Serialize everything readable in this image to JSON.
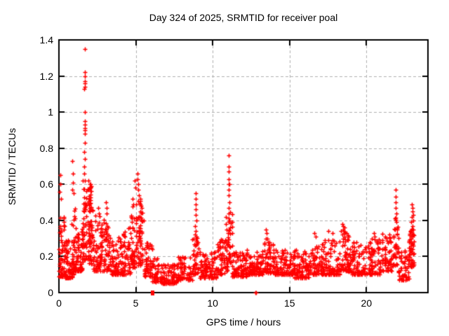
{
  "title": "Day 324 of 2025, SRMTID for receiver poal",
  "chart_data": {
    "type": "scatter",
    "title": "Day 324 of 2025, SRMTID for receiver poal",
    "xlabel": "GPS time / hours",
    "ylabel": "SRMTID / TECUs",
    "xlim": [
      0,
      24
    ],
    "ylim": [
      0,
      1.4
    ],
    "xticks": [
      [
        0,
        "0"
      ],
      [
        5,
        "5"
      ],
      [
        10,
        "10"
      ],
      [
        15,
        "15"
      ],
      [
        20,
        "20"
      ]
    ],
    "yticks": [
      [
        0,
        "0"
      ],
      [
        0.2,
        "0.2"
      ],
      [
        0.4,
        "0.4"
      ],
      [
        0.6,
        "0.6"
      ],
      [
        0.8,
        "0.8"
      ],
      [
        1,
        "1"
      ],
      [
        1.2,
        "1.2"
      ],
      [
        1.4,
        "1.4"
      ]
    ],
    "grid": true,
    "legend_position": "none",
    "marker": "plus",
    "marker_color": "#ff0000",
    "grid_color": "#b0b0b0",
    "border_color": "#000000",
    "background": "#ffffff",
    "seed": 20251120,
    "x_snap_step_hours": 0.05,
    "bands_comment": "dense scatter approximated by bands: [x_start, x_end, n_points, y_low, y_high, low_bias_power]",
    "bands": [
      [
        0.0,
        0.35,
        60,
        0.09,
        0.42,
        2.0
      ],
      [
        0.35,
        0.85,
        70,
        0.08,
        0.3,
        2.0
      ],
      [
        0.8,
        1.1,
        45,
        0.1,
        0.48,
        2.0
      ],
      [
        1.1,
        1.55,
        60,
        0.12,
        0.38,
        2.0
      ],
      [
        1.55,
        1.9,
        50,
        0.18,
        0.62,
        1.5
      ],
      [
        1.9,
        2.2,
        45,
        0.16,
        0.5,
        1.8
      ],
      [
        1.92,
        2.12,
        22,
        0.48,
        0.62,
        1.0
      ],
      [
        2.2,
        2.8,
        65,
        0.12,
        0.44,
        2.0
      ],
      [
        2.8,
        3.35,
        60,
        0.12,
        0.46,
        2.0
      ],
      [
        3.35,
        4.1,
        75,
        0.1,
        0.32,
        2.0
      ],
      [
        4.1,
        4.65,
        55,
        0.1,
        0.36,
        2.0
      ],
      [
        4.65,
        5.05,
        50,
        0.14,
        0.5,
        1.6
      ],
      [
        5.05,
        5.5,
        55,
        0.15,
        0.52,
        1.5
      ],
      [
        5.5,
        6.05,
        55,
        0.09,
        0.28,
        2.0
      ],
      [
        6.05,
        6.65,
        45,
        0.06,
        0.2,
        2.0
      ],
      [
        6.65,
        7.65,
        85,
        0.05,
        0.16,
        2.0
      ],
      [
        7.65,
        8.65,
        80,
        0.07,
        0.2,
        2.0
      ],
      [
        8.65,
        9.15,
        45,
        0.1,
        0.33,
        1.8
      ],
      [
        9.15,
        10.25,
        95,
        0.08,
        0.23,
        2.0
      ],
      [
        10.25,
        10.95,
        65,
        0.1,
        0.3,
        1.8
      ],
      [
        10.95,
        11.25,
        32,
        0.16,
        0.45,
        1.5
      ],
      [
        11.25,
        12.25,
        90,
        0.09,
        0.24,
        2.0
      ],
      [
        12.25,
        13.25,
        90,
        0.1,
        0.24,
        2.0
      ],
      [
        13.25,
        14.05,
        75,
        0.11,
        0.28,
        2.0
      ],
      [
        14.05,
        15.25,
        100,
        0.1,
        0.24,
        2.0
      ],
      [
        15.25,
        16.25,
        90,
        0.08,
        0.24,
        2.0
      ],
      [
        16.25,
        17.25,
        90,
        0.1,
        0.28,
        2.0
      ],
      [
        17.25,
        18.25,
        90,
        0.1,
        0.3,
        1.9
      ],
      [
        18.25,
        18.85,
        55,
        0.12,
        0.34,
        1.7
      ],
      [
        18.85,
        19.85,
        85,
        0.1,
        0.28,
        2.0
      ],
      [
        19.85,
        20.85,
        85,
        0.1,
        0.3,
        2.0
      ],
      [
        20.85,
        21.75,
        75,
        0.12,
        0.33,
        1.9
      ],
      [
        21.75,
        22.1,
        32,
        0.15,
        0.42,
        1.5
      ],
      [
        22.1,
        22.75,
        60,
        0.07,
        0.26,
        2.0
      ],
      [
        22.75,
        23.12,
        55,
        0.14,
        0.38,
        1.5
      ]
    ],
    "outliers_comment": "explicit notable points [gps_hour, srmtid_tecu]",
    "outliers": [
      [
        0.08,
        0.65
      ],
      [
        0.1,
        0.6
      ],
      [
        0.06,
        0.56
      ],
      [
        0.12,
        0.52
      ],
      [
        0.88,
        0.73
      ],
      [
        0.9,
        0.66
      ],
      [
        0.92,
        0.61
      ],
      [
        0.86,
        0.57
      ],
      [
        0.94,
        0.55
      ],
      [
        1.64,
        0.66
      ],
      [
        1.66,
        0.7
      ],
      [
        1.68,
        0.74
      ],
      [
        1.66,
        0.78
      ],
      [
        1.68,
        0.83
      ],
      [
        1.7,
        0.88
      ],
      [
        1.67,
        0.9
      ],
      [
        1.69,
        0.91
      ],
      [
        1.71,
        0.93
      ],
      [
        1.68,
        0.95
      ],
      [
        1.7,
        1.0
      ],
      [
        1.66,
        1.13
      ],
      [
        1.68,
        1.14
      ],
      [
        1.7,
        1.16
      ],
      [
        1.67,
        1.17
      ],
      [
        1.69,
        1.2
      ],
      [
        1.67,
        1.22
      ],
      [
        1.68,
        1.35
      ],
      [
        2.55,
        0.47
      ],
      [
        2.6,
        0.44
      ],
      [
        3.05,
        0.5
      ],
      [
        3.1,
        0.47
      ],
      [
        3.08,
        0.44
      ],
      [
        4.8,
        0.52
      ],
      [
        4.82,
        0.49
      ],
      [
        4.95,
        0.62
      ],
      [
        4.97,
        0.58
      ],
      [
        5.12,
        0.66
      ],
      [
        5.13,
        0.63
      ],
      [
        5.15,
        0.6
      ],
      [
        5.16,
        0.57
      ],
      [
        5.18,
        0.54
      ],
      [
        5.3,
        0.52
      ],
      [
        5.32,
        0.48
      ],
      [
        5.5,
        0.4
      ],
      [
        8.88,
        0.55
      ],
      [
        8.9,
        0.52
      ],
      [
        8.92,
        0.49
      ],
      [
        8.89,
        0.46
      ],
      [
        8.91,
        0.43
      ],
      [
        8.93,
        0.4
      ],
      [
        8.87,
        0.37
      ],
      [
        8.9,
        0.34
      ],
      [
        8.75,
        0.3
      ],
      [
        8.95,
        0.31
      ],
      [
        9.0,
        0.28
      ],
      [
        10.85,
        0.42
      ],
      [
        10.88,
        0.38
      ],
      [
        10.9,
        0.35
      ],
      [
        11.02,
        0.76
      ],
      [
        11.04,
        0.7
      ],
      [
        11.06,
        0.67
      ],
      [
        11.03,
        0.63
      ],
      [
        11.05,
        0.6
      ],
      [
        11.07,
        0.6
      ],
      [
        11.04,
        0.57
      ],
      [
        11.06,
        0.54
      ],
      [
        11.08,
        0.5
      ],
      [
        11.05,
        0.47
      ],
      [
        11.03,
        0.44
      ],
      [
        11.1,
        0.4
      ],
      [
        11.12,
        0.36
      ],
      [
        11.0,
        0.33
      ],
      [
        13.48,
        0.35
      ],
      [
        13.52,
        0.33
      ],
      [
        13.45,
        0.3
      ],
      [
        13.56,
        0.3
      ],
      [
        13.6,
        0.28
      ],
      [
        16.6,
        0.33
      ],
      [
        16.7,
        0.31
      ],
      [
        17.5,
        0.34
      ],
      [
        17.8,
        0.33
      ],
      [
        18.45,
        0.38
      ],
      [
        18.5,
        0.37
      ],
      [
        18.55,
        0.36
      ],
      [
        18.48,
        0.35
      ],
      [
        18.52,
        0.34
      ],
      [
        18.58,
        0.33
      ],
      [
        18.42,
        0.32
      ],
      [
        18.55,
        0.31
      ],
      [
        18.5,
        0.3
      ],
      [
        20.5,
        0.33
      ],
      [
        20.55,
        0.31
      ],
      [
        21.88,
        0.57
      ],
      [
        21.9,
        0.53
      ],
      [
        21.92,
        0.5
      ],
      [
        21.89,
        0.47
      ],
      [
        21.93,
        0.44
      ],
      [
        21.86,
        0.41
      ],
      [
        21.95,
        0.39
      ],
      [
        22.95,
        0.49
      ],
      [
        22.98,
        0.47
      ],
      [
        23.0,
        0.45
      ],
      [
        23.02,
        0.43
      ],
      [
        22.96,
        0.42
      ],
      [
        23.04,
        0.4
      ],
      [
        22.92,
        0.39
      ],
      [
        23.0,
        0.37
      ],
      [
        23.05,
        0.35
      ],
      [
        22.88,
        0.34
      ],
      [
        23.06,
        0.32
      ],
      [
        22.9,
        0.31
      ]
    ],
    "zero_plus_points": [
      12.78,
      12.84
    ],
    "zero_square_points": [
      6.05
    ]
  }
}
